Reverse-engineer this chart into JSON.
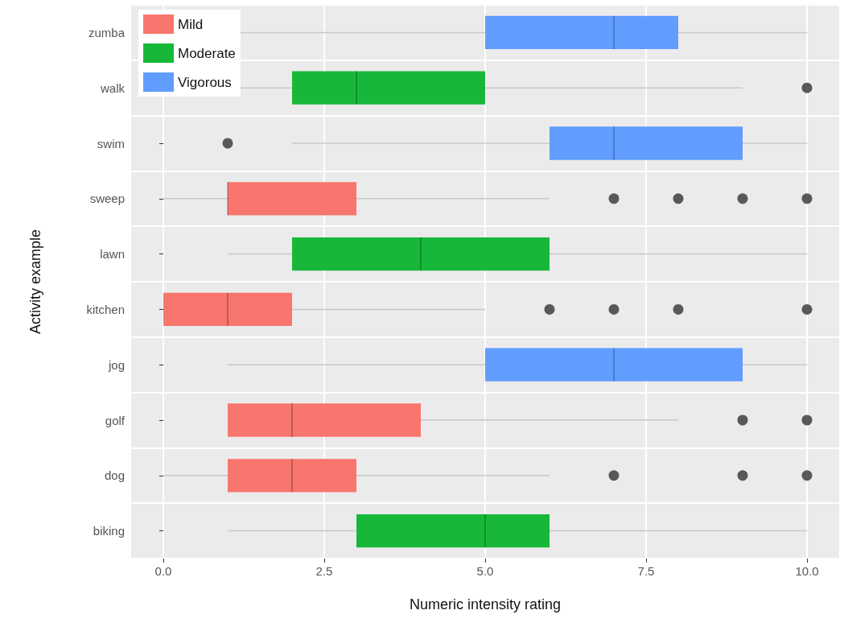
{
  "chart_data": {
    "type": "box",
    "orientation": "horizontal",
    "xlabel": "Numeric intensity rating",
    "ylabel": "Activity example",
    "categories": [
      "zumba",
      "walk",
      "swim",
      "sweep",
      "lawn",
      "kitchen",
      "jog",
      "golf",
      "dog",
      "biking"
    ],
    "xlim": [
      -0.5,
      10.5
    ],
    "xticks": [
      {
        "value": 0,
        "label": "0.0"
      },
      {
        "value": 2.5,
        "label": "2.5"
      },
      {
        "value": 5,
        "label": "5.0"
      },
      {
        "value": 7.5,
        "label": "7.5"
      },
      {
        "value": 10,
        "label": "10.0"
      }
    ],
    "grid": true,
    "legend": "top left",
    "marker": "circle",
    "series": [
      {
        "name": "Mild",
        "color": "#f8766d",
        "boxes": [
          null,
          null,
          null,
          {
            "low": 0,
            "q1": 1,
            "median": 1,
            "q3": 3,
            "high": 6,
            "outliers": [
              7,
              8,
              9,
              10
            ]
          },
          null,
          {
            "low": 0,
            "q1": 0,
            "median": 1,
            "q3": 2,
            "high": 5,
            "outliers": [
              6,
              7,
              8,
              10
            ]
          },
          null,
          {
            "low": 1,
            "q1": 1,
            "median": 2,
            "q3": 4,
            "high": 8,
            "outliers": [
              9,
              10
            ]
          },
          {
            "low": 0,
            "q1": 1,
            "median": 2,
            "q3": 3,
            "high": 6,
            "outliers": [
              7,
              9,
              10
            ]
          },
          null
        ]
      },
      {
        "name": "Moderate",
        "color": "#17b83a",
        "boxes": [
          null,
          {
            "low": 1,
            "q1": 2,
            "median": 3,
            "q3": 5,
            "high": 9,
            "outliers": [
              10
            ]
          },
          null,
          null,
          {
            "low": 1,
            "q1": 2,
            "median": 4,
            "q3": 6,
            "high": 10
          },
          null,
          null,
          null,
          null,
          {
            "low": 1,
            "q1": 3,
            "median": 5,
            "q3": 6,
            "high": 10
          }
        ]
      },
      {
        "name": "Vigorous",
        "color": "#619cff",
        "boxes": [
          {
            "low": 1,
            "q1": 5,
            "median": 7,
            "q3": 8,
            "high": 10
          },
          null,
          {
            "low": 2,
            "q1": 6,
            "median": 7,
            "q3": 9,
            "high": 10,
            "outliers": [
              1
            ]
          },
          null,
          null,
          null,
          {
            "low": 1,
            "q1": 5,
            "median": 7,
            "q3": 9,
            "high": 10
          },
          null,
          null,
          null
        ]
      }
    ]
  }
}
